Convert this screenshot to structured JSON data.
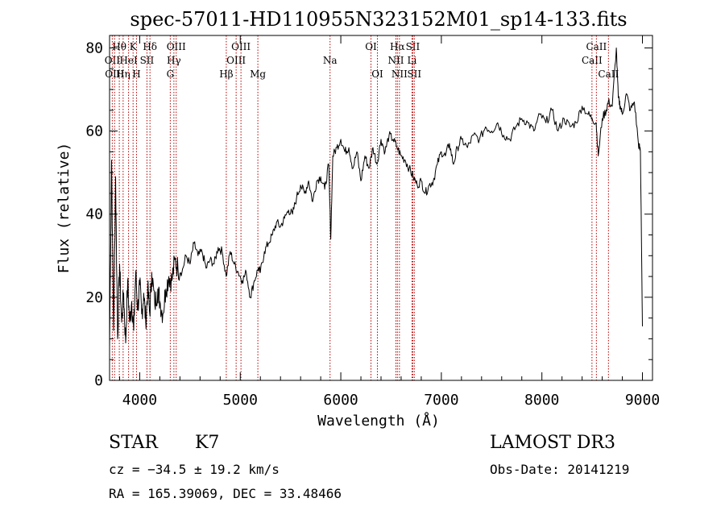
{
  "chart_data": {
    "type": "line",
    "title": "spec-57011-HD110955N323152M01_sp14-133.fits",
    "xlabel": "Wavelength (Å)",
    "ylabel": "Flux (relative)",
    "xlim": [
      3700,
      9100
    ],
    "ylim": [
      0,
      83
    ],
    "xticks": [
      4000,
      5000,
      6000,
      7000,
      8000,
      9000
    ],
    "yticks": [
      0,
      20,
      40,
      60,
      80
    ],
    "grid": false,
    "series": [
      {
        "name": "flux",
        "x": [
          3700,
          3720,
          3740,
          3760,
          3780,
          3800,
          3820,
          3840,
          3860,
          3880,
          3900,
          3920,
          3940,
          3960,
          3980,
          4000,
          4020,
          4040,
          4060,
          4080,
          4100,
          4120,
          4150,
          4180,
          4200,
          4230,
          4260,
          4290,
          4320,
          4350,
          4380,
          4420,
          4460,
          4500,
          4540,
          4580,
          4620,
          4660,
          4700,
          4740,
          4780,
          4820,
          4860,
          4900,
          4940,
          4980,
          5020,
          5060,
          5100,
          5140,
          5180,
          5200,
          5240,
          5280,
          5320,
          5360,
          5400,
          5440,
          5480,
          5520,
          5560,
          5600,
          5640,
          5680,
          5720,
          5760,
          5800,
          5840,
          5880,
          5900,
          5920,
          5960,
          6000,
          6040,
          6080,
          6120,
          6160,
          6200,
          6240,
          6280,
          6320,
          6360,
          6400,
          6440,
          6480,
          6520,
          6560,
          6600,
          6640,
          6680,
          6720,
          6760,
          6800,
          6840,
          6880,
          6920,
          6960,
          7000,
          7040,
          7080,
          7120,
          7160,
          7200,
          7260,
          7320,
          7380,
          7440,
          7500,
          7560,
          7620,
          7680,
          7740,
          7800,
          7860,
          7920,
          7980,
          8040,
          8100,
          8160,
          8220,
          8280,
          8340,
          8400,
          8460,
          8500,
          8540,
          8560,
          8600,
          8640,
          8660,
          8700,
          8740,
          8760,
          8780,
          8800,
          8840,
          8880,
          8920,
          8960,
          8980,
          9000
        ],
        "values": [
          8,
          53,
          12,
          49,
          10,
          28,
          14,
          21,
          9,
          24,
          14,
          19,
          12,
          26,
          17,
          23,
          16,
          21,
          14,
          22,
          16,
          26,
          18,
          22,
          19,
          16,
          22,
          25,
          24,
          29,
          27,
          26,
          30,
          28,
          33,
          30,
          31,
          27,
          29,
          28,
          32,
          31,
          25,
          31,
          28,
          26,
          24,
          26,
          20,
          24,
          27,
          26,
          31,
          33,
          35,
          38,
          37,
          39,
          41,
          40,
          44,
          47,
          45,
          48,
          43,
          48,
          49,
          46,
          52,
          34,
          54,
          56,
          58,
          55,
          56,
          51,
          55,
          48,
          54,
          51,
          56,
          52,
          58,
          55,
          59,
          58,
          56,
          54,
          53,
          51,
          49,
          47,
          48,
          45,
          47,
          48,
          52,
          55,
          54,
          57,
          52,
          56,
          58,
          56,
          59,
          58,
          61,
          60,
          62,
          59,
          58,
          61,
          63,
          62,
          60,
          64,
          62,
          65,
          60,
          63,
          61,
          62,
          66,
          64,
          63,
          62,
          54,
          63,
          65,
          67,
          66,
          80,
          68,
          66,
          64,
          69,
          65,
          67,
          57,
          55,
          13
        ]
      }
    ],
    "line_markers": [
      {
        "label": "OII",
        "x": 3727,
        "row": 1
      },
      {
        "label": "Hθ",
        "x": 3797,
        "row": 0
      },
      {
        "label": "OIII",
        "x": 3750,
        "row": 2
      },
      {
        "label": "Hη",
        "x": 3835,
        "row": 2
      },
      {
        "label": "HeI",
        "x": 3889,
        "row": 1
      },
      {
        "label": "K",
        "x": 3934,
        "row": 0
      },
      {
        "label": "H",
        "x": 3968,
        "row": 2
      },
      {
        "label": "SII",
        "x": 4072,
        "row": 1
      },
      {
        "label": "Hδ",
        "x": 4102,
        "row": 0
      },
      {
        "label": "G",
        "x": 4304,
        "row": 2
      },
      {
        "label": "Hγ",
        "x": 4340,
        "row": 1
      },
      {
        "label": "OIII",
        "x": 4363,
        "row": 0
      },
      {
        "label": "Hβ",
        "x": 4861,
        "row": 2
      },
      {
        "label": "OIII",
        "x": 4959,
        "row": 1
      },
      {
        "label": "OIII",
        "x": 5007,
        "row": 0
      },
      {
        "label": "Mg",
        "x": 5175,
        "row": 2
      },
      {
        "label": "Na",
        "x": 5893,
        "row": 1
      },
      {
        "label": "OI",
        "x": 6300,
        "row": 0
      },
      {
        "label": "OI",
        "x": 6364,
        "row": 2
      },
      {
        "label": "NII",
        "x": 6548,
        "row": 1
      },
      {
        "label": "Hα",
        "x": 6563,
        "row": 0
      },
      {
        "label": "NII",
        "x": 6583,
        "row": 2
      },
      {
        "label": "Li",
        "x": 6708,
        "row": 1
      },
      {
        "label": "SII",
        "x": 6716,
        "row": 0
      },
      {
        "label": "SII",
        "x": 6731,
        "row": 2
      },
      {
        "label": "CaII",
        "x": 8498,
        "row": 1
      },
      {
        "label": "CaII",
        "x": 8542,
        "row": 0
      },
      {
        "label": "CaII",
        "x": 8662,
        "row": 2
      }
    ],
    "marker_color": "#b40000"
  },
  "info": {
    "object_class": "STAR",
    "subclass": "K7",
    "survey": "LAMOST DR3",
    "cz": "cz = −34.5 ± 19.2 km/s",
    "obs_date": "Obs-Date: 20141219",
    "coords": "RA = 165.39069, DEC =  33.48466"
  }
}
